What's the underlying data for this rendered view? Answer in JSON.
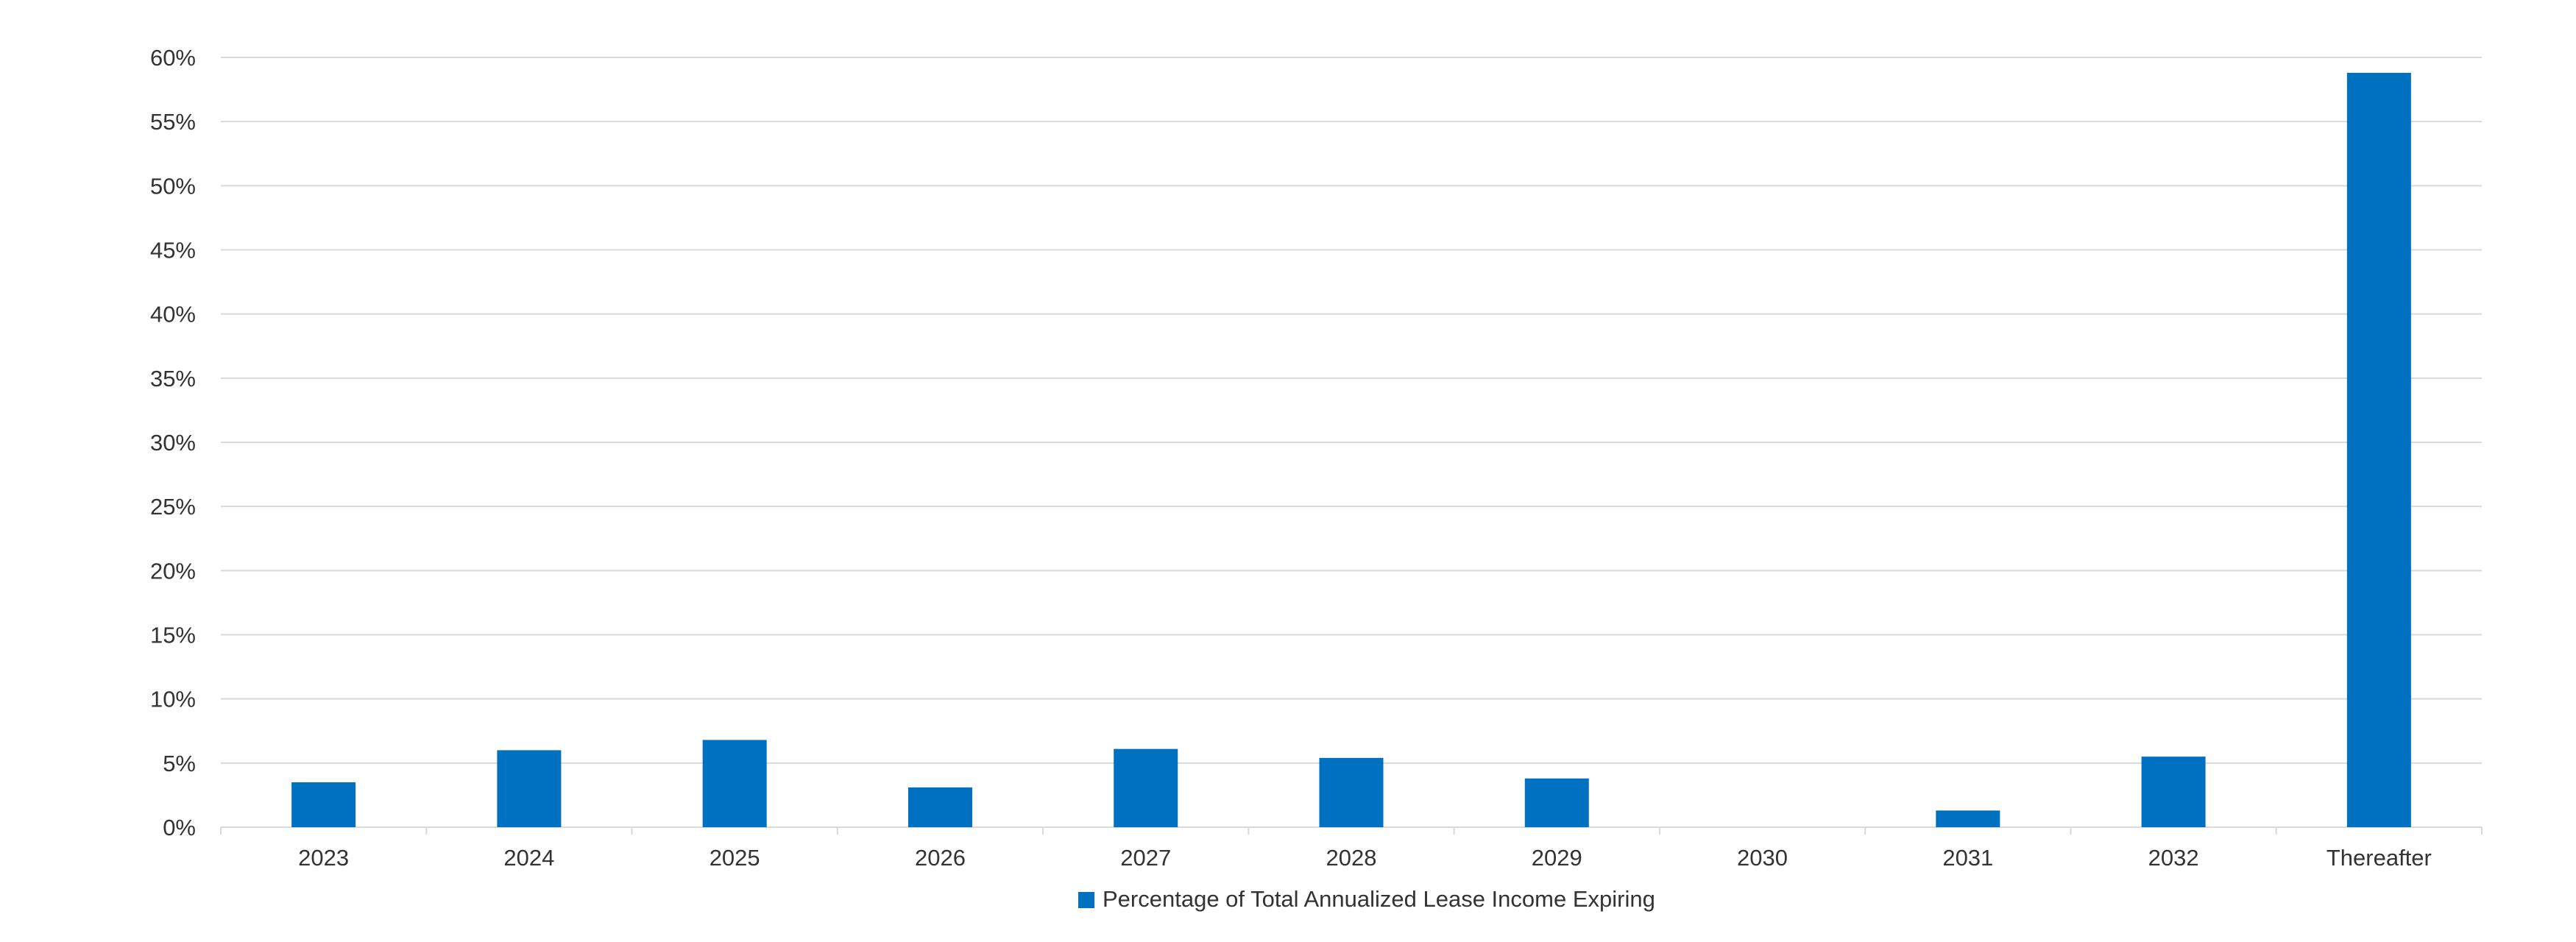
{
  "chart_data": {
    "type": "bar",
    "categories": [
      "2023",
      "2024",
      "2025",
      "2026",
      "2027",
      "2028",
      "2029",
      "2030",
      "2031",
      "2032",
      "Thereafter"
    ],
    "series": [
      {
        "name": "Percentage of Total Annualized Lease Income Expiring",
        "values": [
          3.5,
          6.0,
          6.8,
          3.1,
          6.1,
          5.4,
          3.8,
          0.0,
          1.3,
          5.5,
          58.8
        ],
        "color": "#0070C0"
      }
    ],
    "yticks": [
      "0%",
      "5%",
      "10%",
      "15%",
      "20%",
      "25%",
      "30%",
      "35%",
      "40%",
      "45%",
      "50%",
      "55%",
      "60%"
    ],
    "ylim": [
      0,
      60
    ],
    "grid": true,
    "legend_position": "bottom-center",
    "title": "",
    "xlabel": "",
    "ylabel": ""
  }
}
